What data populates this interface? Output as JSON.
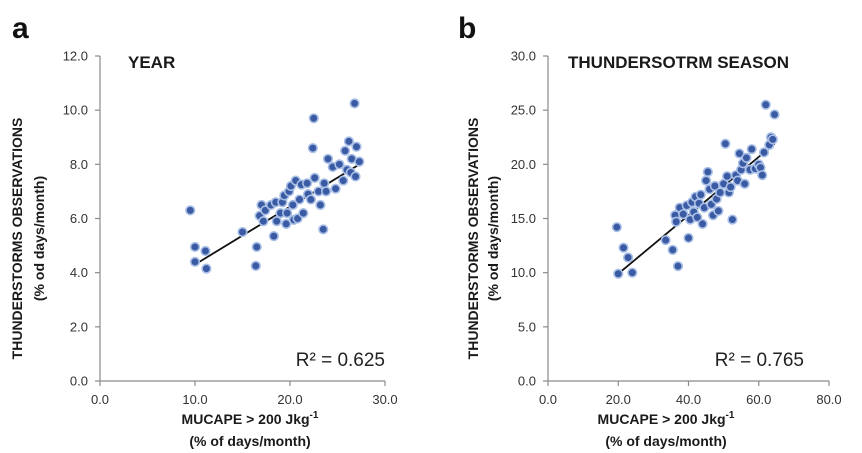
{
  "chart_data": [
    {
      "panel": "a",
      "type": "scatter",
      "title": "YEAR",
      "xlabel_line1": "MUCAPE > 200 Jkg",
      "xlabel_sup": "-1",
      "xlabel_line2": "(% of days/month)",
      "ylabel_line1": "THUNDERSTORMS OBSERVATIONS",
      "ylabel_line2": "(% od days/month)",
      "xlim": [
        0,
        30
      ],
      "ylim": [
        0,
        12
      ],
      "xticks": [
        "0.0",
        "10.0",
        "20.0",
        "30.0"
      ],
      "yticks": [
        "0.0",
        "2.0",
        "4.0",
        "6.0",
        "8.0",
        "10.0",
        "12.0"
      ],
      "r2_label": "R² = 0.625",
      "trendline": {
        "x": [
          10.0,
          27.3
        ],
        "y": [
          4.3,
          8.0
        ]
      },
      "points": [
        {
          "x": 9.5,
          "y": 6.3
        },
        {
          "x": 10.0,
          "y": 4.95
        },
        {
          "x": 10.0,
          "y": 4.4
        },
        {
          "x": 11.1,
          "y": 4.8
        },
        {
          "x": 11.2,
          "y": 4.15
        },
        {
          "x": 15.0,
          "y": 5.5
        },
        {
          "x": 16.4,
          "y": 4.25
        },
        {
          "x": 16.5,
          "y": 4.95
        },
        {
          "x": 16.8,
          "y": 6.1
        },
        {
          "x": 17.0,
          "y": 6.5
        },
        {
          "x": 17.2,
          "y": 5.9
        },
        {
          "x": 17.4,
          "y": 6.3
        },
        {
          "x": 18.0,
          "y": 6.5
        },
        {
          "x": 18.3,
          "y": 5.35
        },
        {
          "x": 18.5,
          "y": 6.6
        },
        {
          "x": 18.6,
          "y": 5.9
        },
        {
          "x": 19.0,
          "y": 6.2
        },
        {
          "x": 19.2,
          "y": 6.6
        },
        {
          "x": 19.4,
          "y": 6.85
        },
        {
          "x": 19.6,
          "y": 5.8
        },
        {
          "x": 19.7,
          "y": 6.2
        },
        {
          "x": 19.9,
          "y": 7.0
        },
        {
          "x": 20.1,
          "y": 7.2
        },
        {
          "x": 20.3,
          "y": 6.5
        },
        {
          "x": 20.4,
          "y": 5.95
        },
        {
          "x": 20.6,
          "y": 7.4
        },
        {
          "x": 20.8,
          "y": 6.0
        },
        {
          "x": 21.0,
          "y": 6.7
        },
        {
          "x": 21.2,
          "y": 7.25
        },
        {
          "x": 21.4,
          "y": 6.2
        },
        {
          "x": 21.8,
          "y": 7.3
        },
        {
          "x": 21.9,
          "y": 6.9
        },
        {
          "x": 22.2,
          "y": 6.7
        },
        {
          "x": 22.4,
          "y": 8.6
        },
        {
          "x": 22.5,
          "y": 9.7
        },
        {
          "x": 22.6,
          "y": 7.5
        },
        {
          "x": 23.0,
          "y": 7.0
        },
        {
          "x": 23.2,
          "y": 6.5
        },
        {
          "x": 23.5,
          "y": 5.6
        },
        {
          "x": 23.6,
          "y": 7.3
        },
        {
          "x": 23.8,
          "y": 7.0
        },
        {
          "x": 24.0,
          "y": 8.2
        },
        {
          "x": 24.5,
          "y": 7.9
        },
        {
          "x": 24.8,
          "y": 7.1
        },
        {
          "x": 25.2,
          "y": 8.0
        },
        {
          "x": 25.6,
          "y": 7.4
        },
        {
          "x": 25.8,
          "y": 8.5
        },
        {
          "x": 26.0,
          "y": 7.8
        },
        {
          "x": 26.2,
          "y": 8.85
        },
        {
          "x": 26.4,
          "y": 7.7
        },
        {
          "x": 26.5,
          "y": 8.2
        },
        {
          "x": 26.8,
          "y": 10.25
        },
        {
          "x": 26.9,
          "y": 7.55
        },
        {
          "x": 27.0,
          "y": 8.65
        },
        {
          "x": 27.3,
          "y": 8.1
        }
      ]
    },
    {
      "panel": "b",
      "type": "scatter",
      "title": "THUNDERSOTRM SEASON",
      "xlabel_line1": "MUCAPE > 200 Jkg",
      "xlabel_sup": "-1",
      "xlabel_line2": "(% of days/month)",
      "ylabel_line1": "THUNDERSTORMS OBSERVATIONS",
      "ylabel_line2": "(% od days/month)",
      "xlim": [
        0,
        80
      ],
      "ylim": [
        0,
        30
      ],
      "xticks": [
        "0.0",
        "20.0",
        "40.0",
        "60.0",
        "80.0"
      ],
      "yticks": [
        "0.0",
        "5.0",
        "10.0",
        "15.0",
        "20.0",
        "25.0",
        "30.0"
      ],
      "r2_label": "R² = 0.765",
      "trendline": {
        "x": [
          20.0,
          64.5
        ],
        "y": [
          9.9,
          21.9
        ]
      },
      "points": [
        {
          "x": 19.6,
          "y": 14.2
        },
        {
          "x": 20.0,
          "y": 9.9
        },
        {
          "x": 21.5,
          "y": 12.3
        },
        {
          "x": 22.8,
          "y": 11.4
        },
        {
          "x": 24.0,
          "y": 10.0
        },
        {
          "x": 33.5,
          "y": 13.0
        },
        {
          "x": 35.5,
          "y": 12.1
        },
        {
          "x": 36.2,
          "y": 15.3
        },
        {
          "x": 36.5,
          "y": 14.7
        },
        {
          "x": 37.0,
          "y": 10.6
        },
        {
          "x": 37.5,
          "y": 16.0
        },
        {
          "x": 38.5,
          "y": 15.4
        },
        {
          "x": 39.5,
          "y": 16.2
        },
        {
          "x": 40.0,
          "y": 13.2
        },
        {
          "x": 40.5,
          "y": 14.9
        },
        {
          "x": 41.0,
          "y": 16.5
        },
        {
          "x": 41.5,
          "y": 15.6
        },
        {
          "x": 42.0,
          "y": 17.0
        },
        {
          "x": 42.5,
          "y": 15.1
        },
        {
          "x": 43.0,
          "y": 16.4
        },
        {
          "x": 43.5,
          "y": 17.2
        },
        {
          "x": 44.0,
          "y": 14.5
        },
        {
          "x": 44.5,
          "y": 16.0
        },
        {
          "x": 45.0,
          "y": 18.5
        },
        {
          "x": 45.5,
          "y": 19.3
        },
        {
          "x": 46.0,
          "y": 17.7
        },
        {
          "x": 46.5,
          "y": 16.3
        },
        {
          "x": 47.0,
          "y": 15.3
        },
        {
          "x": 47.5,
          "y": 18.0
        },
        {
          "x": 48.0,
          "y": 16.8
        },
        {
          "x": 48.5,
          "y": 15.7
        },
        {
          "x": 49.0,
          "y": 17.4
        },
        {
          "x": 50.0,
          "y": 18.2
        },
        {
          "x": 50.5,
          "y": 21.9
        },
        {
          "x": 51.0,
          "y": 18.9
        },
        {
          "x": 51.5,
          "y": 17.4
        },
        {
          "x": 52.0,
          "y": 17.9
        },
        {
          "x": 52.5,
          "y": 14.9
        },
        {
          "x": 53.5,
          "y": 19.0
        },
        {
          "x": 54.0,
          "y": 18.5
        },
        {
          "x": 54.5,
          "y": 21.0
        },
        {
          "x": 55.0,
          "y": 19.5
        },
        {
          "x": 55.5,
          "y": 20.1
        },
        {
          "x": 56.0,
          "y": 18.2
        },
        {
          "x": 56.5,
          "y": 20.6
        },
        {
          "x": 57.5,
          "y": 19.5
        },
        {
          "x": 58.0,
          "y": 21.4
        },
        {
          "x": 59.0,
          "y": 19.6
        },
        {
          "x": 60.0,
          "y": 20.0
        },
        {
          "x": 60.5,
          "y": 19.7
        },
        {
          "x": 61.0,
          "y": 19.0
        },
        {
          "x": 61.5,
          "y": 21.1
        },
        {
          "x": 62.0,
          "y": 25.5
        },
        {
          "x": 63.0,
          "y": 21.8
        },
        {
          "x": 63.5,
          "y": 22.5
        },
        {
          "x": 64.0,
          "y": 22.3
        },
        {
          "x": 64.5,
          "y": 24.6
        }
      ]
    }
  ]
}
